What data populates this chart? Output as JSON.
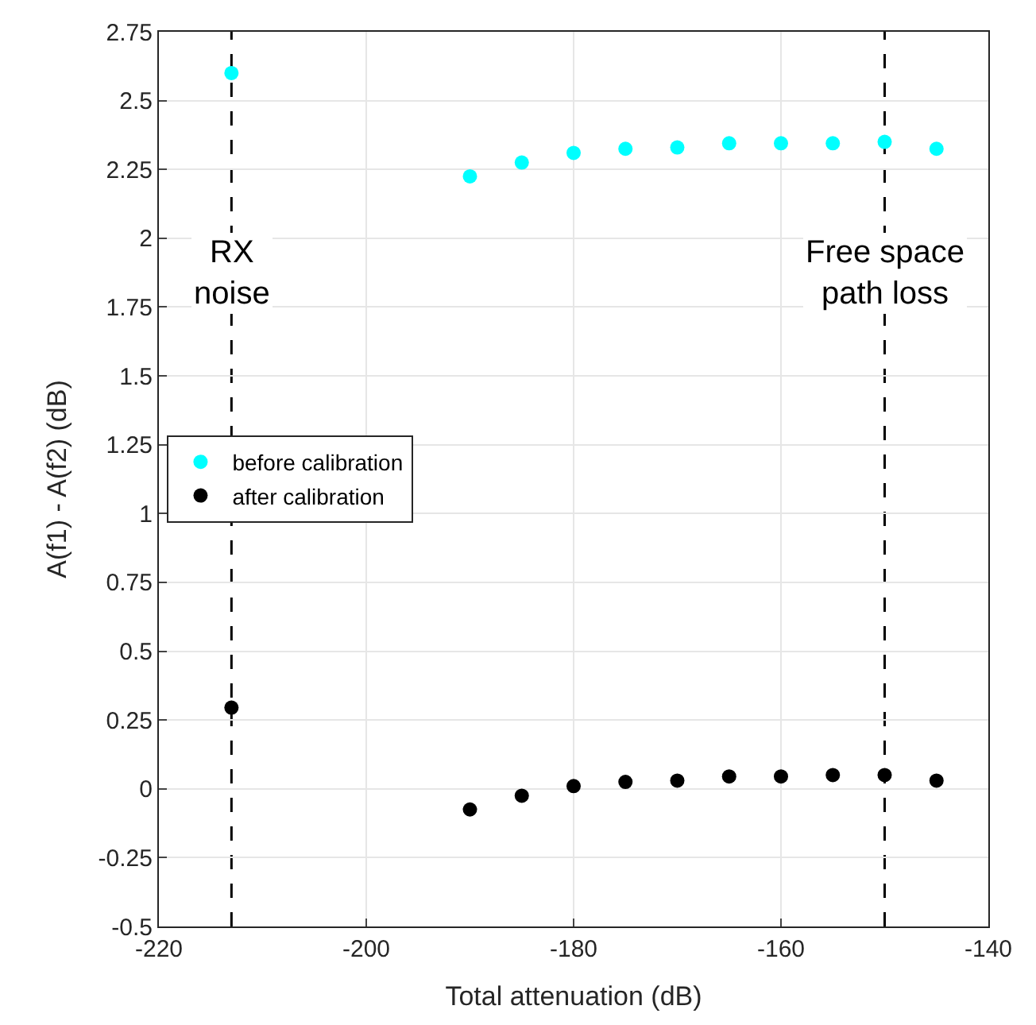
{
  "chart_data": {
    "type": "scatter",
    "xlabel": "Total attenuation (dB)",
    "ylabel": "A(f1) - A(f2) (dB)",
    "x": [
      -213,
      -190,
      -185,
      -180,
      -175,
      -170,
      -165,
      -160,
      -155,
      -150,
      -145
    ],
    "series": [
      {
        "name": "before calibration",
        "color": "#00ffff",
        "values": [
          2.6,
          2.225,
          2.275,
          2.31,
          2.325,
          2.33,
          2.345,
          2.345,
          2.345,
          2.35,
          2.325
        ]
      },
      {
        "name": "after calibration",
        "color": "#000000",
        "values": [
          0.295,
          -0.075,
          -0.025,
          0.01,
          0.025,
          0.03,
          0.045,
          0.045,
          0.05,
          0.05,
          0.03
        ]
      }
    ],
    "xlim": [
      -220,
      -140
    ],
    "xticks": [
      -220,
      -200,
      -180,
      -160,
      -140
    ],
    "ylim": [
      -0.5,
      2.75
    ],
    "yticks": [
      -0.5,
      -0.25,
      0,
      0.25,
      0.5,
      0.75,
      1,
      1.25,
      1.5,
      1.75,
      2,
      2.25,
      2.5,
      2.75
    ],
    "ref_lines": [
      {
        "axis": "x",
        "value": -213,
        "label": "RX\nnoise",
        "color": "#000000",
        "line_style": "dashed"
      },
      {
        "axis": "x",
        "value": -150,
        "label": "Free space\npath loss",
        "color": "#000000",
        "line_style": "dashed"
      }
    ],
    "grid": true,
    "legend": "left",
    "marker": "circle"
  }
}
